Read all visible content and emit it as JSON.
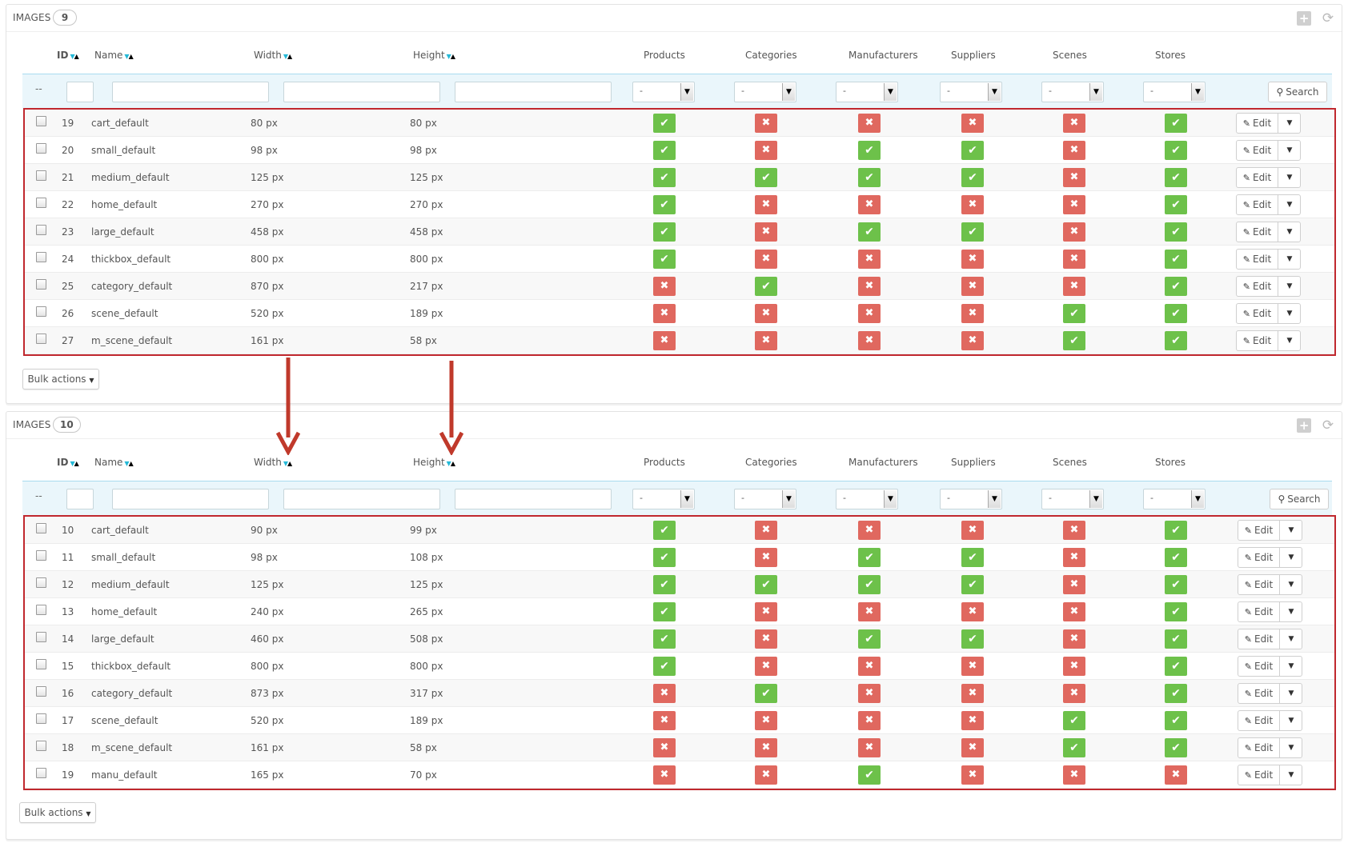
{
  "header": {
    "title": "IMAGES"
  },
  "columns": {
    "id": "ID",
    "name": "Name",
    "width": "Width",
    "height": "Height",
    "products": "Products",
    "categories": "Categories",
    "manufacturers": "Manufacturers",
    "suppliers": "Suppliers",
    "scenes": "Scenes",
    "stores": "Stores"
  },
  "sort_icons": {
    "desc": "▼",
    "asc": "▲"
  },
  "filters": {
    "dash": "--",
    "select_value": "-",
    "search_label": "Search"
  },
  "actions": {
    "edit_label": "Edit",
    "bulk_label": "Bulk actions"
  },
  "icons": {
    "check": "✔",
    "cross": "✖",
    "pencil": "✎",
    "caret": "▼",
    "search": "⚲",
    "add": "+",
    "refresh": "⟳"
  },
  "colors": {
    "enabled": "#6dc14a",
    "disabled": "#e0685f",
    "highlight_border": "#c0282e",
    "arrow": "#c0392b",
    "sort_accent": "#25b9d7"
  },
  "panels": [
    {
      "count": "9",
      "rows": [
        {
          "id": "19",
          "name": "cart_default",
          "width": "80 px",
          "height": "80 px",
          "flags": [
            true,
            false,
            false,
            false,
            false,
            true
          ]
        },
        {
          "id": "20",
          "name": "small_default",
          "width": "98 px",
          "height": "98 px",
          "flags": [
            true,
            false,
            true,
            true,
            false,
            true
          ]
        },
        {
          "id": "21",
          "name": "medium_default",
          "width": "125 px",
          "height": "125 px",
          "flags": [
            true,
            true,
            true,
            true,
            false,
            true
          ]
        },
        {
          "id": "22",
          "name": "home_default",
          "width": "270 px",
          "height": "270 px",
          "flags": [
            true,
            false,
            false,
            false,
            false,
            true
          ]
        },
        {
          "id": "23",
          "name": "large_default",
          "width": "458 px",
          "height": "458 px",
          "flags": [
            true,
            false,
            true,
            true,
            false,
            true
          ]
        },
        {
          "id": "24",
          "name": "thickbox_default",
          "width": "800 px",
          "height": "800 px",
          "flags": [
            true,
            false,
            false,
            false,
            false,
            true
          ]
        },
        {
          "id": "25",
          "name": "category_default",
          "width": "870 px",
          "height": "217 px",
          "flags": [
            false,
            true,
            false,
            false,
            false,
            true
          ]
        },
        {
          "id": "26",
          "name": "scene_default",
          "width": "520 px",
          "height": "189 px",
          "flags": [
            false,
            false,
            false,
            false,
            true,
            true
          ]
        },
        {
          "id": "27",
          "name": "m_scene_default",
          "width": "161 px",
          "height": "58 px",
          "flags": [
            false,
            false,
            false,
            false,
            true,
            true
          ]
        }
      ]
    },
    {
      "count": "10",
      "rows": [
        {
          "id": "10",
          "name": "cart_default",
          "width": "90 px",
          "height": "99 px",
          "flags": [
            true,
            false,
            false,
            false,
            false,
            true
          ]
        },
        {
          "id": "11",
          "name": "small_default",
          "width": "98 px",
          "height": "108 px",
          "flags": [
            true,
            false,
            true,
            true,
            false,
            true
          ]
        },
        {
          "id": "12",
          "name": "medium_default",
          "width": "125 px",
          "height": "125 px",
          "flags": [
            true,
            true,
            true,
            true,
            false,
            true
          ]
        },
        {
          "id": "13",
          "name": "home_default",
          "width": "240 px",
          "height": "265 px",
          "flags": [
            true,
            false,
            false,
            false,
            false,
            true
          ]
        },
        {
          "id": "14",
          "name": "large_default",
          "width": "460 px",
          "height": "508 px",
          "flags": [
            true,
            false,
            true,
            true,
            false,
            true
          ]
        },
        {
          "id": "15",
          "name": "thickbox_default",
          "width": "800 px",
          "height": "800 px",
          "flags": [
            true,
            false,
            false,
            false,
            false,
            true
          ]
        },
        {
          "id": "16",
          "name": "category_default",
          "width": "873 px",
          "height": "317 px",
          "flags": [
            false,
            true,
            false,
            false,
            false,
            true
          ]
        },
        {
          "id": "17",
          "name": "scene_default",
          "width": "520 px",
          "height": "189 px",
          "flags": [
            false,
            false,
            false,
            false,
            true,
            true
          ]
        },
        {
          "id": "18",
          "name": "m_scene_default",
          "width": "161 px",
          "height": "58 px",
          "flags": [
            false,
            false,
            false,
            false,
            true,
            true
          ]
        },
        {
          "id": "19",
          "name": "manu_default",
          "width": "165 px",
          "height": "70 px",
          "flags": [
            false,
            false,
            true,
            false,
            false,
            false
          ]
        }
      ]
    }
  ]
}
